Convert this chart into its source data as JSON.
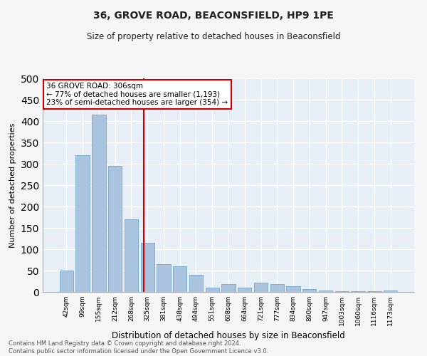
{
  "title1": "36, GROVE ROAD, BEACONSFIELD, HP9 1PE",
  "title2": "Size of property relative to detached houses in Beaconsfield",
  "xlabel": "Distribution of detached houses by size in Beaconsfield",
  "ylabel": "Number of detached properties",
  "footer1": "Contains HM Land Registry data © Crown copyright and database right 2024.",
  "footer2": "Contains public sector information licensed under the Open Government Licence v3.0.",
  "categories": [
    "42sqm",
    "99sqm",
    "155sqm",
    "212sqm",
    "268sqm",
    "325sqm",
    "381sqm",
    "438sqm",
    "494sqm",
    "551sqm",
    "608sqm",
    "664sqm",
    "721sqm",
    "777sqm",
    "834sqm",
    "890sqm",
    "947sqm",
    "1003sqm",
    "1060sqm",
    "1116sqm",
    "1173sqm"
  ],
  "values": [
    50,
    320,
    415,
    295,
    170,
    115,
    65,
    60,
    40,
    10,
    18,
    10,
    22,
    18,
    14,
    7,
    3,
    2,
    1,
    1,
    3
  ],
  "bar_color": "#aac4e0",
  "bar_edgecolor": "#7aaed0",
  "background_color": "#e8eef5",
  "fig_background_color": "#f5f5f5",
  "grid_color": "#ffffff",
  "vline_x_index": 4.77,
  "vline_color": "#cc0000",
  "annotation_text": "36 GROVE ROAD: 306sqm\n← 77% of detached houses are smaller (1,193)\n23% of semi-detached houses are larger (354) →",
  "annotation_box_color": "#ffffff",
  "annotation_box_edgecolor": "#cc0000",
  "ylim": [
    0,
    500
  ],
  "yticks": [
    0,
    50,
    100,
    150,
    200,
    250,
    300,
    350,
    400,
    450,
    500
  ]
}
